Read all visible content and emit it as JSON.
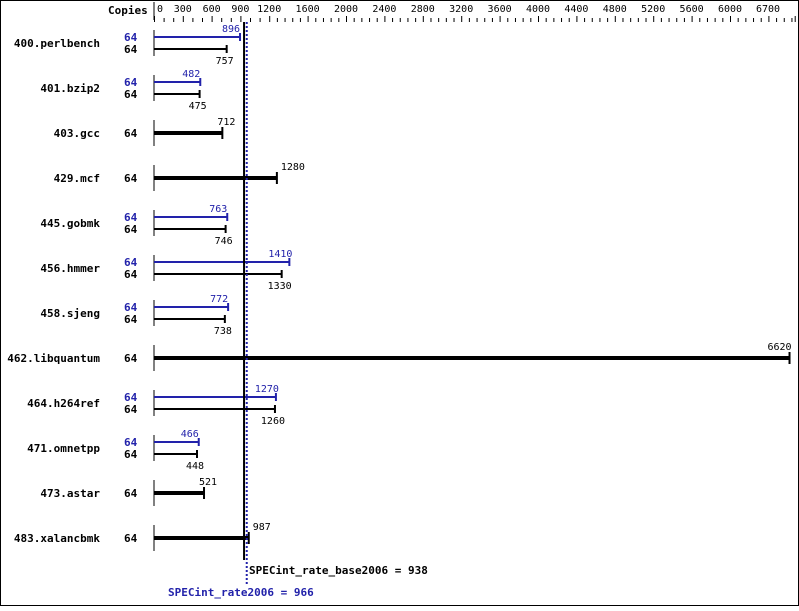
{
  "chart_data": {
    "type": "bar",
    "orientation": "horizontal",
    "header_label": "Copies",
    "x_ticks": [
      0,
      300,
      600,
      900,
      1200,
      1600,
      2000,
      2400,
      2800,
      3200,
      3600,
      4000,
      4400,
      4800,
      5200,
      5600,
      6000,
      6700
    ],
    "xlim": [
      0,
      6700
    ],
    "colors": {
      "peak": "#2222aa",
      "base": "#000000"
    },
    "benchmarks": [
      {
        "name": "400.perlbench",
        "peak_copies": "64",
        "base_copies": "64",
        "peak": 896,
        "base": 757
      },
      {
        "name": "401.bzip2",
        "peak_copies": "64",
        "base_copies": "64",
        "peak": 482,
        "base": 475
      },
      {
        "name": "403.gcc",
        "base_copies": "64",
        "base": 712
      },
      {
        "name": "429.mcf",
        "base_copies": "64",
        "base": 1280
      },
      {
        "name": "445.gobmk",
        "peak_copies": "64",
        "base_copies": "64",
        "peak": 763,
        "base": 746
      },
      {
        "name": "456.hmmer",
        "peak_copies": "64",
        "base_copies": "64",
        "peak": 1410,
        "base": 1330
      },
      {
        "name": "458.sjeng",
        "peak_copies": "64",
        "base_copies": "64",
        "peak": 772,
        "base": 738
      },
      {
        "name": "462.libquantum",
        "base_copies": "64",
        "base": 6620
      },
      {
        "name": "464.h264ref",
        "peak_copies": "64",
        "base_copies": "64",
        "peak": 1270,
        "base": 1260
      },
      {
        "name": "471.omnetpp",
        "peak_copies": "64",
        "base_copies": "64",
        "peak": 466,
        "base": 448
      },
      {
        "name": "473.astar",
        "base_copies": "64",
        "base": 521
      },
      {
        "name": "483.xalancbmk",
        "base_copies": "64",
        "base": 987
      }
    ],
    "base_mean": {
      "label": "SPECint_rate_base2006 = 938",
      "value": 938
    },
    "peak_mean": {
      "label": "SPECint_rate2006 = 966",
      "value": 966
    }
  }
}
